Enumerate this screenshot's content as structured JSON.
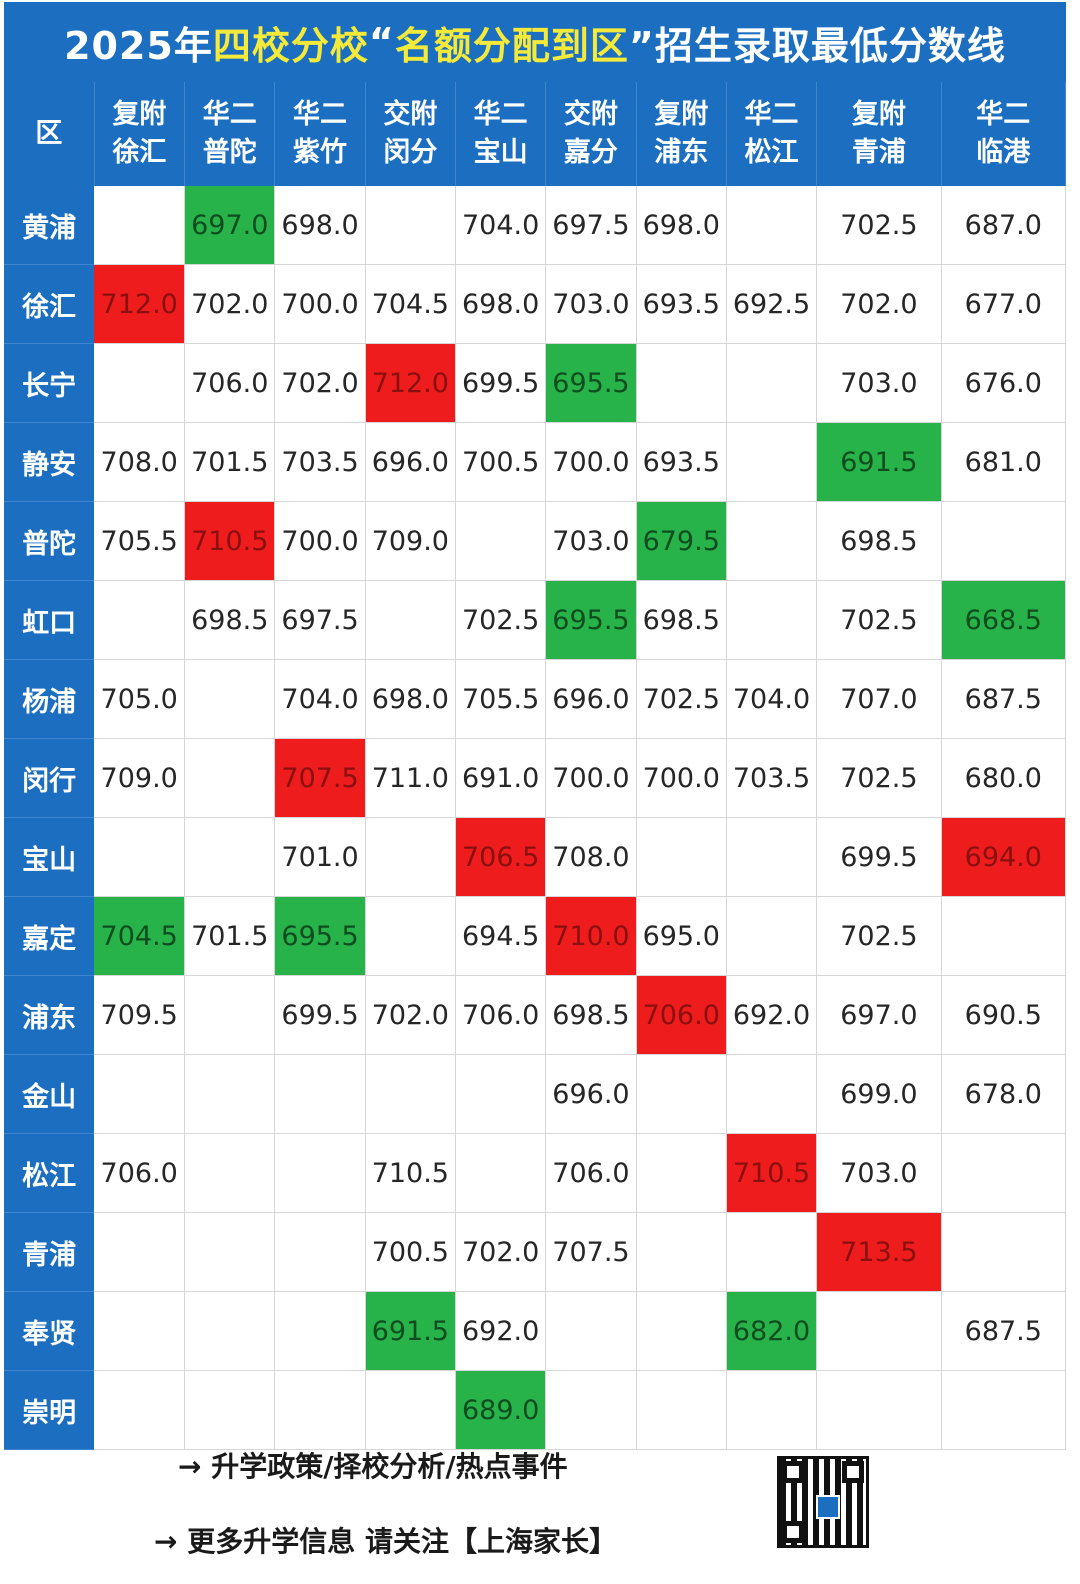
{
  "title": {
    "prefix": "2025年",
    "highlight1": "四校分校",
    "middle": "“",
    "highlight2": "名额分配到区",
    "suffix": "”招生录取最低分数线"
  },
  "corner_label": "区",
  "columns": [
    {
      "line1": "复附",
      "line2": "徐汇"
    },
    {
      "line1": "华二",
      "line2": "普陀"
    },
    {
      "line1": "华二",
      "line2": "紫竹"
    },
    {
      "line1": "交附",
      "line2": "闵分"
    },
    {
      "line1": "华二",
      "line2": "宝山"
    },
    {
      "line1": "交附",
      "line2": "嘉分"
    },
    {
      "line1": "复附",
      "line2": "浦东"
    },
    {
      "line1": "华二",
      "line2": "松江"
    },
    {
      "line1": "复附",
      "line2": "青浦"
    },
    {
      "line1": "华二",
      "line2": "临港"
    }
  ],
  "rows": [
    {
      "district": "黄浦",
      "cells": [
        {
          "v": "",
          "s": ""
        },
        {
          "v": "697.0",
          "s": "lo"
        },
        {
          "v": "698.0",
          "s": ""
        },
        {
          "v": "",
          "s": ""
        },
        {
          "v": "704.0",
          "s": ""
        },
        {
          "v": "697.5",
          "s": ""
        },
        {
          "v": "698.0",
          "s": ""
        },
        {
          "v": "",
          "s": ""
        },
        {
          "v": "702.5",
          "s": ""
        },
        {
          "v": "687.0",
          "s": ""
        }
      ]
    },
    {
      "district": "徐汇",
      "cells": [
        {
          "v": "712.0",
          "s": "hi"
        },
        {
          "v": "702.0",
          "s": ""
        },
        {
          "v": "700.0",
          "s": ""
        },
        {
          "v": "704.5",
          "s": ""
        },
        {
          "v": "698.0",
          "s": ""
        },
        {
          "v": "703.0",
          "s": ""
        },
        {
          "v": "693.5",
          "s": ""
        },
        {
          "v": "692.5",
          "s": ""
        },
        {
          "v": "702.0",
          "s": ""
        },
        {
          "v": "677.0",
          "s": ""
        }
      ]
    },
    {
      "district": "长宁",
      "cells": [
        {
          "v": "",
          "s": ""
        },
        {
          "v": "706.0",
          "s": ""
        },
        {
          "v": "702.0",
          "s": ""
        },
        {
          "v": "712.0",
          "s": "hi"
        },
        {
          "v": "699.5",
          "s": ""
        },
        {
          "v": "695.5",
          "s": "lo"
        },
        {
          "v": "",
          "s": ""
        },
        {
          "v": "",
          "s": ""
        },
        {
          "v": "703.0",
          "s": ""
        },
        {
          "v": "676.0",
          "s": ""
        }
      ]
    },
    {
      "district": "静安",
      "cells": [
        {
          "v": "708.0",
          "s": ""
        },
        {
          "v": "701.5",
          "s": ""
        },
        {
          "v": "703.5",
          "s": ""
        },
        {
          "v": "696.0",
          "s": ""
        },
        {
          "v": "700.5",
          "s": ""
        },
        {
          "v": "700.0",
          "s": ""
        },
        {
          "v": "693.5",
          "s": ""
        },
        {
          "v": "",
          "s": ""
        },
        {
          "v": "691.5",
          "s": "lo"
        },
        {
          "v": "681.0",
          "s": ""
        }
      ]
    },
    {
      "district": "普陀",
      "cells": [
        {
          "v": "705.5",
          "s": ""
        },
        {
          "v": "710.5",
          "s": "hi"
        },
        {
          "v": "700.0",
          "s": ""
        },
        {
          "v": "709.0",
          "s": ""
        },
        {
          "v": "",
          "s": ""
        },
        {
          "v": "703.0",
          "s": ""
        },
        {
          "v": "679.5",
          "s": "lo"
        },
        {
          "v": "",
          "s": ""
        },
        {
          "v": "698.5",
          "s": ""
        },
        {
          "v": "",
          "s": ""
        }
      ]
    },
    {
      "district": "虹口",
      "cells": [
        {
          "v": "",
          "s": ""
        },
        {
          "v": "698.5",
          "s": ""
        },
        {
          "v": "697.5",
          "s": ""
        },
        {
          "v": "",
          "s": ""
        },
        {
          "v": "702.5",
          "s": ""
        },
        {
          "v": "695.5",
          "s": "lo"
        },
        {
          "v": "698.5",
          "s": ""
        },
        {
          "v": "",
          "s": ""
        },
        {
          "v": "702.5",
          "s": ""
        },
        {
          "v": "668.5",
          "s": "lo"
        }
      ]
    },
    {
      "district": "杨浦",
      "cells": [
        {
          "v": "705.0",
          "s": ""
        },
        {
          "v": "",
          "s": ""
        },
        {
          "v": "704.0",
          "s": ""
        },
        {
          "v": "698.0",
          "s": ""
        },
        {
          "v": "705.5",
          "s": ""
        },
        {
          "v": "696.0",
          "s": ""
        },
        {
          "v": "702.5",
          "s": ""
        },
        {
          "v": "704.0",
          "s": ""
        },
        {
          "v": "707.0",
          "s": ""
        },
        {
          "v": "687.5",
          "s": ""
        }
      ]
    },
    {
      "district": "闵行",
      "cells": [
        {
          "v": "709.0",
          "s": ""
        },
        {
          "v": "",
          "s": ""
        },
        {
          "v": "707.5",
          "s": "hi"
        },
        {
          "v": "711.0",
          "s": ""
        },
        {
          "v": "691.0",
          "s": ""
        },
        {
          "v": "700.0",
          "s": ""
        },
        {
          "v": "700.0",
          "s": ""
        },
        {
          "v": "703.5",
          "s": ""
        },
        {
          "v": "702.5",
          "s": ""
        },
        {
          "v": "680.0",
          "s": ""
        }
      ]
    },
    {
      "district": "宝山",
      "cells": [
        {
          "v": "",
          "s": ""
        },
        {
          "v": "",
          "s": ""
        },
        {
          "v": "701.0",
          "s": ""
        },
        {
          "v": "",
          "s": ""
        },
        {
          "v": "706.5",
          "s": "hi"
        },
        {
          "v": "708.0",
          "s": ""
        },
        {
          "v": "",
          "s": ""
        },
        {
          "v": "",
          "s": ""
        },
        {
          "v": "699.5",
          "s": ""
        },
        {
          "v": "694.0",
          "s": "hi"
        }
      ]
    },
    {
      "district": "嘉定",
      "cells": [
        {
          "v": "704.5",
          "s": "lo"
        },
        {
          "v": "701.5",
          "s": ""
        },
        {
          "v": "695.5",
          "s": "lo"
        },
        {
          "v": "",
          "s": ""
        },
        {
          "v": "694.5",
          "s": ""
        },
        {
          "v": "710.0",
          "s": "hi"
        },
        {
          "v": "695.0",
          "s": ""
        },
        {
          "v": "",
          "s": ""
        },
        {
          "v": "702.5",
          "s": ""
        },
        {
          "v": "",
          "s": ""
        }
      ]
    },
    {
      "district": "浦东",
      "cells": [
        {
          "v": "709.5",
          "s": ""
        },
        {
          "v": "",
          "s": ""
        },
        {
          "v": "699.5",
          "s": ""
        },
        {
          "v": "702.0",
          "s": ""
        },
        {
          "v": "706.0",
          "s": ""
        },
        {
          "v": "698.5",
          "s": ""
        },
        {
          "v": "706.0",
          "s": "hi"
        },
        {
          "v": "692.0",
          "s": ""
        },
        {
          "v": "697.0",
          "s": ""
        },
        {
          "v": "690.5",
          "s": ""
        }
      ]
    },
    {
      "district": "金山",
      "cells": [
        {
          "v": "",
          "s": ""
        },
        {
          "v": "",
          "s": ""
        },
        {
          "v": "",
          "s": ""
        },
        {
          "v": "",
          "s": ""
        },
        {
          "v": "",
          "s": ""
        },
        {
          "v": "696.0",
          "s": ""
        },
        {
          "v": "",
          "s": ""
        },
        {
          "v": "",
          "s": ""
        },
        {
          "v": "699.0",
          "s": ""
        },
        {
          "v": "678.0",
          "s": ""
        }
      ]
    },
    {
      "district": "松江",
      "cells": [
        {
          "v": "706.0",
          "s": ""
        },
        {
          "v": "",
          "s": ""
        },
        {
          "v": "",
          "s": ""
        },
        {
          "v": "710.5",
          "s": ""
        },
        {
          "v": "",
          "s": ""
        },
        {
          "v": "706.0",
          "s": ""
        },
        {
          "v": "",
          "s": ""
        },
        {
          "v": "710.5",
          "s": "hi"
        },
        {
          "v": "703.0",
          "s": ""
        },
        {
          "v": "",
          "s": ""
        }
      ]
    },
    {
      "district": "青浦",
      "cells": [
        {
          "v": "",
          "s": ""
        },
        {
          "v": "",
          "s": ""
        },
        {
          "v": "",
          "s": ""
        },
        {
          "v": "700.5",
          "s": ""
        },
        {
          "v": "702.0",
          "s": ""
        },
        {
          "v": "707.5",
          "s": ""
        },
        {
          "v": "",
          "s": ""
        },
        {
          "v": "",
          "s": ""
        },
        {
          "v": "713.5",
          "s": "hi"
        },
        {
          "v": "",
          "s": ""
        }
      ]
    },
    {
      "district": "奉贤",
      "cells": [
        {
          "v": "",
          "s": ""
        },
        {
          "v": "",
          "s": ""
        },
        {
          "v": "",
          "s": ""
        },
        {
          "v": "691.5",
          "s": "lo"
        },
        {
          "v": "692.0",
          "s": ""
        },
        {
          "v": "",
          "s": ""
        },
        {
          "v": "",
          "s": ""
        },
        {
          "v": "682.0",
          "s": "lo"
        },
        {
          "v": "",
          "s": ""
        },
        {
          "v": "687.5",
          "s": ""
        }
      ]
    },
    {
      "district": "崇明",
      "cells": [
        {
          "v": "",
          "s": ""
        },
        {
          "v": "",
          "s": ""
        },
        {
          "v": "",
          "s": ""
        },
        {
          "v": "",
          "s": ""
        },
        {
          "v": "689.0",
          "s": "lo"
        },
        {
          "v": "",
          "s": ""
        },
        {
          "v": "",
          "s": ""
        },
        {
          "v": "",
          "s": ""
        },
        {
          "v": "",
          "s": ""
        },
        {
          "v": "",
          "s": ""
        }
      ]
    }
  ],
  "footer": {
    "line1": "→ 升学政策/择校分析/热点事件",
    "line2": "→ 更多升学信息 请关注【上海家长】"
  },
  "colors": {
    "header_blue": "#1c6fc0",
    "title_highlight": "#f5ea3a",
    "highest_red": "#ee1c1c",
    "lowest_green": "#27b34a"
  },
  "icons": {
    "qr_code": "qr-code-icon"
  }
}
